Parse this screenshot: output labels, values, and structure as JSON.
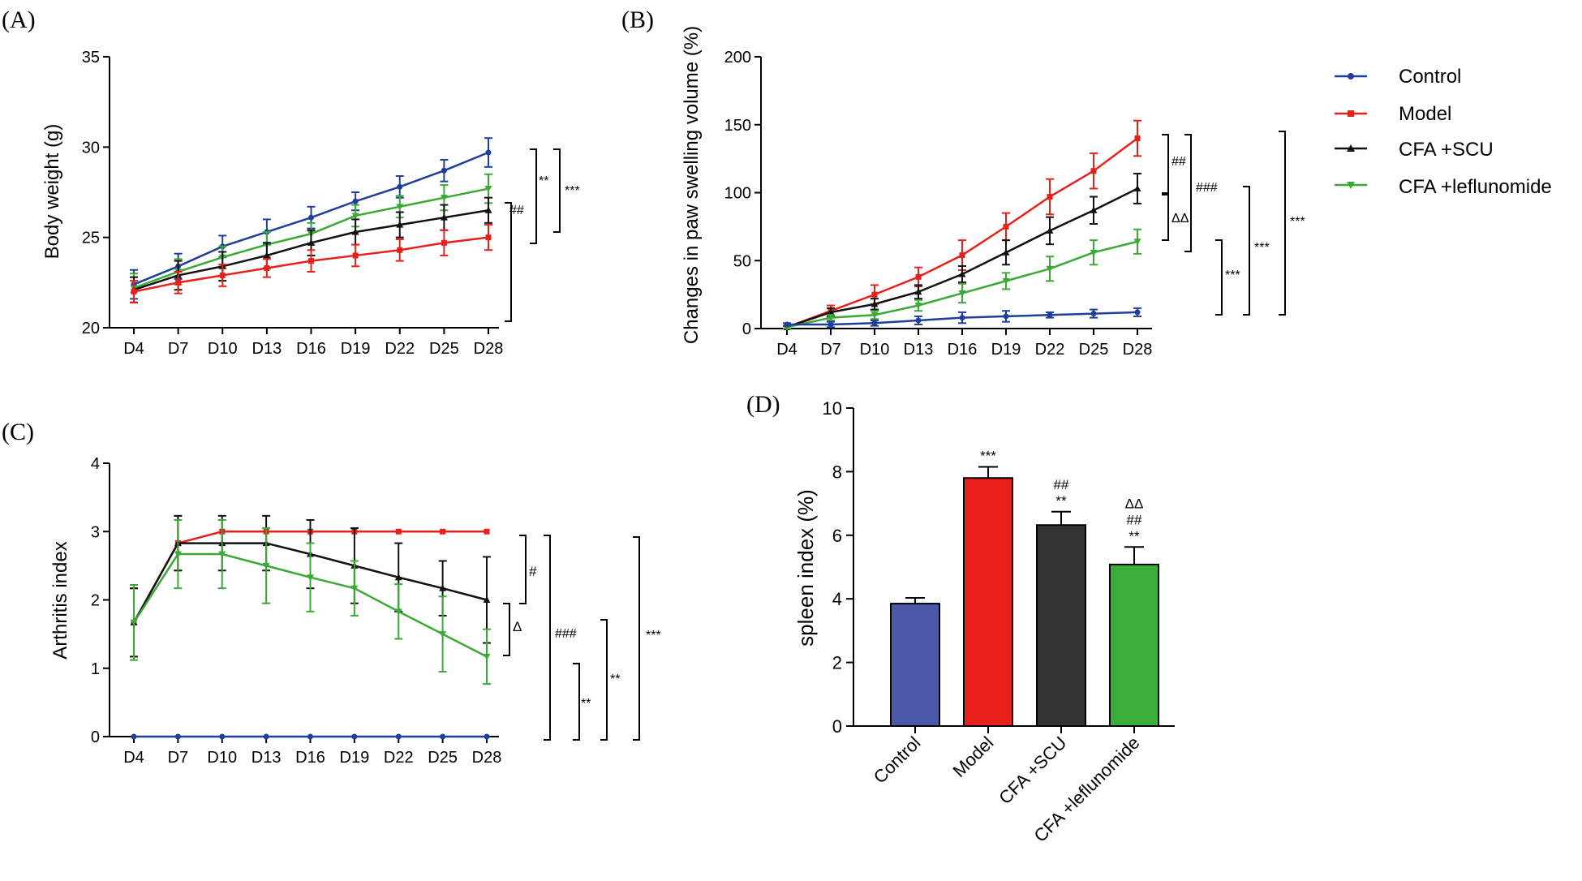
{
  "colors": {
    "control": "#1f3f9a",
    "model": "#e8201c",
    "scu": "#111111",
    "lef": "#3aa935",
    "bar_control": "#4a5aa8",
    "bar_model": "#e8201c",
    "bar_scu": "#333333",
    "bar_lef": "#3aad3a"
  },
  "legend": [
    {
      "label": "Control",
      "key": "control",
      "marker": "circle"
    },
    {
      "label": "Model",
      "key": "model",
      "marker": "square"
    },
    {
      "label": "CFA +SCU",
      "key": "scu",
      "marker": "triangle-up"
    },
    {
      "label": "CFA +leflunomide",
      "key": "lef",
      "marker": "triangle-down"
    }
  ],
  "chart_data": [
    {
      "id": "A",
      "panel_label": "(A)",
      "type": "line",
      "title": "",
      "xlabel": "",
      "ylabel": "Body weight (g)",
      "categories": [
        "D4",
        "D7",
        "D10",
        "D13",
        "D16",
        "D19",
        "D22",
        "D25",
        "D28"
      ],
      "ylim": [
        20,
        35
      ],
      "yticks": [
        20,
        25,
        30,
        35
      ],
      "series": [
        {
          "name": "Control",
          "key": "control",
          "values": [
            22.4,
            23.4,
            24.5,
            25.3,
            26.1,
            27.0,
            27.8,
            28.7,
            29.7
          ],
          "errors": [
            0.8,
            0.7,
            0.6,
            0.7,
            0.6,
            0.5,
            0.6,
            0.6,
            0.8
          ]
        },
        {
          "name": "CFA +leflunomide",
          "key": "lef",
          "values": [
            22.2,
            23.1,
            23.9,
            24.6,
            25.2,
            26.2,
            26.7,
            27.2,
            27.7
          ],
          "errors": [
            0.8,
            0.7,
            0.6,
            0.7,
            0.6,
            0.6,
            0.6,
            0.7,
            0.8
          ]
        },
        {
          "name": "CFA +SCU",
          "key": "scu",
          "values": [
            22.1,
            22.9,
            23.4,
            24.0,
            24.7,
            25.3,
            25.7,
            26.1,
            26.5
          ],
          "errors": [
            0.7,
            0.8,
            0.8,
            0.7,
            0.7,
            0.7,
            0.7,
            0.7,
            0.7
          ]
        },
        {
          "name": "Model",
          "key": "model",
          "values": [
            22.0,
            22.5,
            22.9,
            23.3,
            23.7,
            24.0,
            24.3,
            24.7,
            25.0
          ],
          "errors": [
            0.6,
            0.6,
            0.6,
            0.5,
            0.6,
            0.6,
            0.6,
            0.7,
            0.7
          ]
        }
      ],
      "annotations": [
        {
          "text": "**"
        },
        {
          "text": "***"
        },
        {
          "text": "##"
        }
      ]
    },
    {
      "id": "B",
      "panel_label": "(B)",
      "type": "line",
      "title": "",
      "xlabel": "",
      "ylabel": "Changes in paw swelling volume (%)",
      "categories": [
        "D4",
        "D7",
        "D10",
        "D13",
        "D16",
        "D19",
        "D22",
        "D25",
        "D28"
      ],
      "ylim": [
        0,
        200
      ],
      "yticks": [
        0,
        50,
        100,
        150,
        200
      ],
      "series": [
        {
          "name": "Model",
          "key": "model",
          "values": [
            1,
            13,
            25,
            38,
            54,
            75,
            97,
            116,
            140
          ],
          "errors": [
            1,
            4,
            7,
            7,
            11,
            10,
            13,
            13,
            13
          ]
        },
        {
          "name": "CFA +SCU",
          "key": "scu",
          "values": [
            1,
            12,
            18,
            27,
            40,
            56,
            72,
            87,
            103
          ],
          "errors": [
            1,
            3,
            4,
            5,
            6,
            9,
            10,
            10,
            11
          ]
        },
        {
          "name": "CFA +leflunomide",
          "key": "lef",
          "values": [
            1,
            8,
            10,
            17,
            26,
            35,
            44,
            56,
            64
          ],
          "errors": [
            1,
            2,
            3,
            4,
            7,
            6,
            9,
            9,
            9
          ]
        },
        {
          "name": "Control",
          "key": "control",
          "values": [
            3,
            3,
            4,
            6,
            8,
            9,
            10,
            11,
            12
          ],
          "errors": [
            1,
            2,
            2,
            3,
            4,
            4,
            2,
            3,
            3
          ]
        }
      ],
      "annotations": [
        {
          "text": "##"
        },
        {
          "text": "ΔΔ"
        },
        {
          "text": "###"
        },
        {
          "text": "***"
        },
        {
          "text": "***"
        },
        {
          "text": "***"
        }
      ]
    },
    {
      "id": "C",
      "panel_label": "(C)",
      "type": "line",
      "title": "",
      "xlabel": "",
      "ylabel": "Arthritis index",
      "categories": [
        "D4",
        "D7",
        "D10",
        "D13",
        "D16",
        "D19",
        "D22",
        "D25",
        "D28"
      ],
      "ylim": [
        0,
        4
      ],
      "yticks": [
        0,
        1,
        2,
        3,
        4
      ],
      "series": [
        {
          "name": "Model",
          "key": "model",
          "values": [
            1.67,
            2.83,
            3.0,
            3.0,
            3.0,
            3.0,
            3.0,
            3.0,
            3.0
          ],
          "errors": [
            0.5,
            0.4,
            0,
            0,
            0,
            0,
            0,
            0,
            0
          ]
        },
        {
          "name": "CFA +SCU",
          "key": "scu",
          "values": [
            1.67,
            2.83,
            2.83,
            2.83,
            2.67,
            2.5,
            2.33,
            2.17,
            2.0
          ],
          "errors": [
            0.5,
            0.4,
            0.4,
            0.4,
            0.5,
            0.55,
            0.5,
            0.4,
            0.63
          ]
        },
        {
          "name": "CFA +leflunomide",
          "key": "lef",
          "values": [
            1.67,
            2.67,
            2.67,
            2.5,
            2.33,
            2.17,
            1.83,
            1.5,
            1.17
          ],
          "errors": [
            0.55,
            0.5,
            0.5,
            0.55,
            0.5,
            0.4,
            0.4,
            0.55,
            0.4
          ]
        },
        {
          "name": "Control",
          "key": "control",
          "values": [
            0,
            0,
            0,
            0,
            0,
            0,
            0,
            0,
            0
          ],
          "errors": [
            0,
            0,
            0,
            0,
            0,
            0,
            0,
            0,
            0
          ]
        }
      ],
      "annotations": [
        {
          "text": "#"
        },
        {
          "text": "Δ"
        },
        {
          "text": "###"
        },
        {
          "text": "**"
        },
        {
          "text": "**"
        },
        {
          "text": "***"
        }
      ]
    },
    {
      "id": "D",
      "panel_label": "(D)",
      "type": "bar",
      "title": "",
      "xlabel": "",
      "ylabel": "spleen index (%)",
      "categories": [
        "Control",
        "Model",
        "CFA +SCU",
        "CFA +leflunomide"
      ],
      "ylim": [
        0,
        10
      ],
      "yticks": [
        0,
        2,
        4,
        6,
        8,
        10
      ],
      "values": [
        3.85,
        7.8,
        6.32,
        5.08
      ],
      "errors": [
        0.18,
        0.35,
        0.42,
        0.55
      ],
      "bar_keys": [
        "bar_control",
        "bar_model",
        "bar_scu",
        "bar_lef"
      ],
      "bar_labels": [
        [],
        [
          "***"
        ],
        [
          "##",
          "**"
        ],
        [
          "ΔΔ",
          "##",
          "**"
        ]
      ]
    }
  ]
}
